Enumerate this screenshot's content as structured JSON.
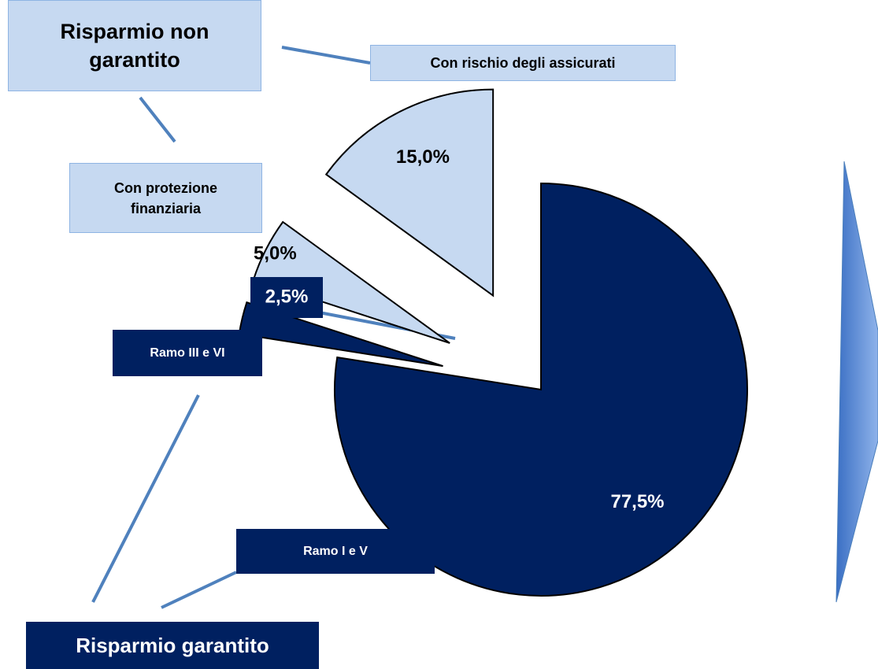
{
  "chart_data": {
    "type": "pie",
    "categories": [
      "Ramo I e V",
      "Ramo III e VI",
      "Con protezione finanziaria",
      "Con rischio degli assicurati"
    ],
    "values": [
      77.5,
      2.5,
      5,
      15
    ],
    "value_labels": [
      "77,5%",
      "2,5%",
      "5,0%",
      "15,0%"
    ],
    "colors": [
      "#002060",
      "#002060",
      "#c6d9f1",
      "#c6d9f1"
    ],
    "annotations": [
      "Risparmio garantito",
      "Risparmio non garantito"
    ]
  }
}
